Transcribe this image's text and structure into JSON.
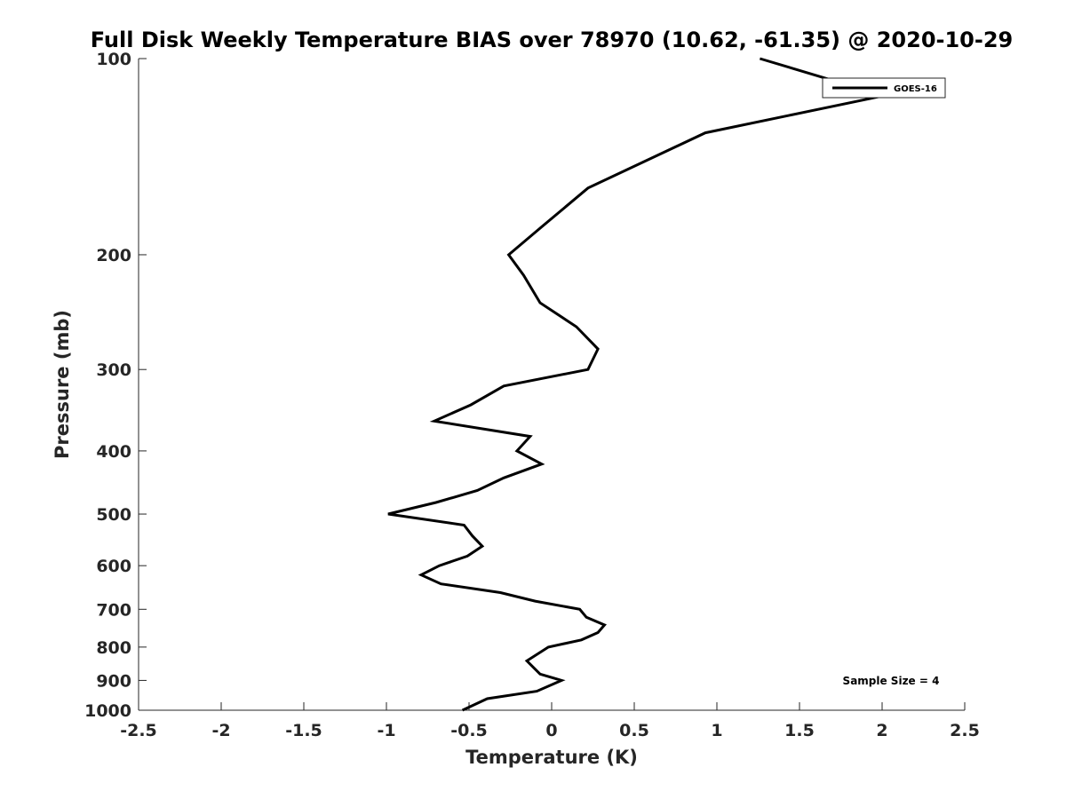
{
  "chart_data": {
    "type": "line",
    "title": "Full Disk Weekly Temperature BIAS over 78970 (10.62, -61.35) @ 2020-10-29",
    "xlabel": "Temperature (K)",
    "ylabel": "Pressure (mb)",
    "xlim": [
      -2.5,
      2.5
    ],
    "ylim": [
      1000,
      100
    ],
    "y_scale": "log",
    "y_reversed": true,
    "xticks": [
      "-2.5",
      "-2",
      "-1.5",
      "-1",
      "-0.5",
      "0",
      "0.5",
      "1",
      "1.5",
      "2",
      "2.5"
    ],
    "yticks": [
      "100",
      "200",
      "300",
      "400",
      "500",
      "600",
      "700",
      "800",
      "900",
      "1000"
    ],
    "grid": false,
    "legend": {
      "position": "top-right",
      "entries": [
        "GOES-16"
      ]
    },
    "annotation": "Sample Size = 4",
    "series": [
      {
        "name": "GOES-16",
        "color": "#000000",
        "x": [
          1.26,
          2.01,
          0.93,
          0.22,
          -0.08,
          -0.26,
          -0.17,
          -0.07,
          0.15,
          0.28,
          0.22,
          -0.29,
          -0.49,
          -0.71,
          -0.13,
          -0.21,
          -0.06,
          -0.29,
          -0.45,
          -0.7,
          -0.99,
          -0.53,
          -0.48,
          -0.42,
          -0.51,
          -0.68,
          -0.79,
          -0.67,
          -0.31,
          -0.1,
          0.17,
          0.21,
          0.32,
          0.28,
          0.18,
          -0.02,
          -0.15,
          -0.07,
          0.06,
          -0.09,
          -0.39,
          -0.54
        ],
        "y": [
          100,
          114,
          130,
          158,
          183,
          200,
          215,
          237,
          258,
          279,
          300,
          318,
          340,
          360,
          380,
          400,
          419,
          440,
          460,
          480,
          500,
          520,
          540,
          560,
          580,
          600,
          620,
          640,
          660,
          680,
          700,
          720,
          740,
          760,
          780,
          800,
          840,
          880,
          900,
          935,
          960,
          1000
        ]
      }
    ]
  }
}
